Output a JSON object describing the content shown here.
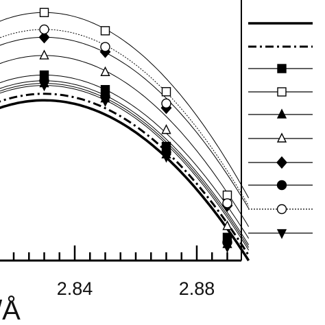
{
  "chart_data": {
    "type": "line",
    "xlabel_fragment": "/Å",
    "x_tick_labels": [
      "2.84",
      "2.88"
    ],
    "x_ticks_major": [
      2.84,
      2.88
    ],
    "xlim": [
      2.79,
      2.897
    ],
    "ylim": [
      0,
      1.0
    ],
    "grid": false,
    "legend_placement": "right",
    "marker_x": [
      2.83,
      2.85,
      2.87,
      2.89
    ],
    "series": [
      {
        "style": "thick-solid",
        "marker": "none",
        "peak_x": 2.83,
        "peak": 0.615,
        "end": 0.0
      },
      {
        "style": "dash-dot",
        "marker": "none",
        "peak_x": 2.83,
        "peak": 0.64,
        "end": 0.02
      },
      {
        "style": "thin",
        "marker": "filled-square",
        "peak_x": 2.83,
        "peak": 0.712,
        "end": 0.085,
        "values": [
          0.712,
          0.656,
          0.438,
          0.089
        ]
      },
      {
        "style": "thin",
        "marker": "open-square",
        "peak_x": 2.83,
        "peak": 0.952,
        "end": 0.24,
        "values": [
          0.952,
          0.882,
          0.648,
          0.251
        ]
      },
      {
        "style": "thin",
        "marker": "filled-triangle",
        "peak_x": 2.83,
        "peak": 0.68,
        "end": 0.05,
        "values": [
          0.68,
          0.622,
          0.407,
          0.063
        ]
      },
      {
        "style": "thin",
        "marker": "open-triangle",
        "peak_x": 2.83,
        "peak": 0.787,
        "end": 0.13,
        "values": [
          0.787,
          0.723,
          0.501,
          0.132
        ]
      },
      {
        "style": "thin",
        "marker": "filled-diamond",
        "peak_x": 2.83,
        "peak": 0.857,
        "end": 0.2,
        "values": [
          0.857,
          0.801,
          0.586,
          0.211
        ]
      },
      {
        "style": "thin",
        "marker": "filled-circle",
        "peak_x": 2.83,
        "peak": 0.69,
        "end": 0.06,
        "values": [
          0.69,
          0.63,
          0.415,
          0.07
        ]
      },
      {
        "style": "dotted-thin",
        "marker": "open-circle",
        "peak_x": 2.83,
        "peak": 0.887,
        "end": 0.21,
        "values": [
          0.887,
          0.82,
          0.603,
          0.22
        ]
      },
      {
        "style": "thin",
        "marker": "filled-triangle-down",
        "peak_x": 2.83,
        "peak": 0.672,
        "end": 0.04,
        "values": [
          0.672,
          0.612,
          0.398,
          0.052
        ]
      }
    ]
  }
}
